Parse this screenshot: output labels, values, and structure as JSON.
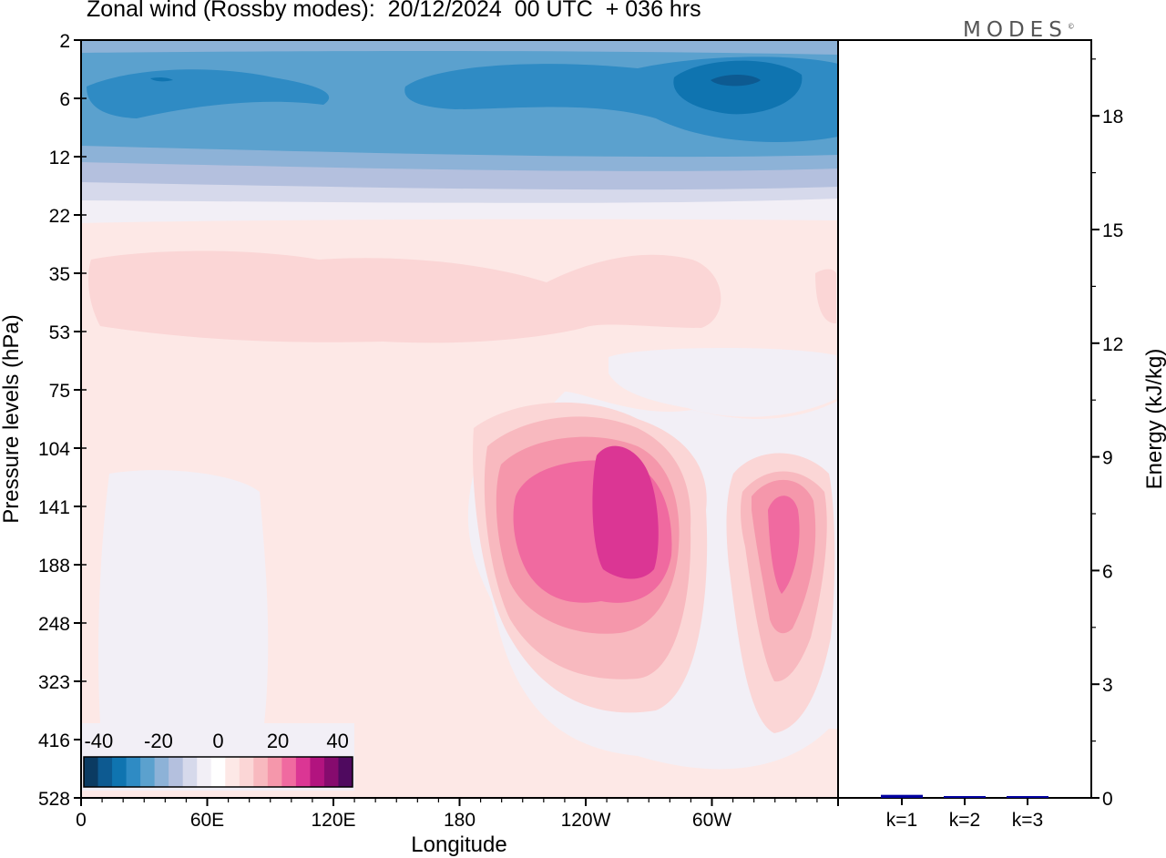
{
  "title": "Zonal wind (Rossby modes):  20/12/2024  00 UTC  + 036 hrs",
  "brand": "MODES",
  "brand_mark": "©",
  "colors": {
    "neg": [
      "#0b3b62",
      "#0d5a91",
      "#0f74b0",
      "#2f8bc4",
      "#5ba1ce",
      "#8db2d7",
      "#b4c0de",
      "#d6d9eb",
      "#f2eff6"
    ],
    "zero": "#ffffff",
    "pos": [
      "#fde8e6",
      "#fbd6d6",
      "#f8b9bf",
      "#f597ab",
      "#f06aa0",
      "#db3694",
      "#b2137f",
      "#860b6e",
      "#4f0a5f"
    ],
    "bar": "#0000a0"
  },
  "chart_data": [
    {
      "type": "heatmap",
      "title": "Zonal wind (Rossby modes):  20/12/2024  00 UTC  + 036 hrs",
      "xlabel": "Longitude",
      "ylabel": "Pressure levels (hPa)",
      "x_ticks": [
        "0",
        "60E",
        "120E",
        "180",
        "120W",
        "60W"
      ],
      "y_ticks": [
        "2",
        "6",
        "12",
        "22",
        "35",
        "53",
        "75",
        "104",
        "141",
        "188",
        "248",
        "323",
        "416",
        "528"
      ],
      "colorbar": {
        "labels": [
          "-40",
          "-20",
          "0",
          "20",
          "40"
        ],
        "range": [
          -45,
          45
        ],
        "step": 5
      },
      "features": [
        {
          "lon": 210,
          "level": "141",
          "value": 26
        },
        {
          "lon": 325,
          "level": "141",
          "value": 20
        },
        {
          "lon": 330,
          "level": "6",
          "value": -30
        },
        {
          "lon": 230,
          "level": "6",
          "value": -20
        },
        {
          "lon": 40,
          "level": "6",
          "value": -20
        },
        {
          "lon": 150,
          "level": "141",
          "value": -2
        }
      ]
    },
    {
      "type": "bar",
      "ylabel": "Energy (kJ/kg)",
      "categories": [
        "k=1",
        "k=2",
        "k=3"
      ],
      "values": [
        0.08,
        0.03,
        0.02
      ],
      "ylim": [
        0,
        20
      ],
      "y_ticks": [
        "0",
        "3",
        "6",
        "9",
        "12",
        "15",
        "18"
      ]
    }
  ]
}
